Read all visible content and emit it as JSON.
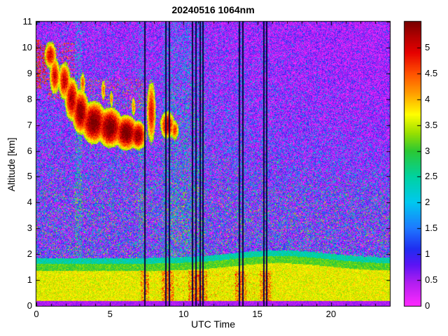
{
  "chart_data": {
    "type": "heatmap",
    "title": "20240516 1064nm",
    "xlabel": "UTC Time",
    "ylabel": "Altitude [km]",
    "x_range": [
      0,
      24
    ],
    "y_range": [
      0,
      11
    ],
    "x_ticks": [
      0,
      5,
      10,
      15,
      20
    ],
    "x_minor_tick_step": 1,
    "y_ticks": [
      0,
      1,
      2,
      3,
      4,
      5,
      6,
      7,
      8,
      9,
      10,
      11
    ],
    "grid": false,
    "legend": "colorbar-right",
    "colorbar": {
      "range": [
        0,
        5.5
      ],
      "ticks": [
        0,
        0.5,
        1,
        1.5,
        2,
        2.5,
        3,
        3.5,
        4,
        4.5,
        5
      ],
      "stops": [
        [
          0.0,
          "#ff2aff"
        ],
        [
          0.45,
          "#b01ef0"
        ],
        [
          0.8,
          "#5a14f5"
        ],
        [
          1.1,
          "#1f2df0"
        ],
        [
          1.5,
          "#1e78ff"
        ],
        [
          2.0,
          "#00c8f0"
        ],
        [
          2.5,
          "#00d2a0"
        ],
        [
          3.0,
          "#2cc832"
        ],
        [
          3.35,
          "#9be000"
        ],
        [
          3.7,
          "#ffff00"
        ],
        [
          4.1,
          "#ffa000"
        ],
        [
          4.5,
          "#ff5000"
        ],
        [
          4.9,
          "#e60000"
        ],
        [
          5.2,
          "#b40000"
        ],
        [
          5.5,
          "#780000"
        ]
      ]
    },
    "features": {
      "dropout_line_color": "#0a0040",
      "dropout_lines": [
        7.35,
        8.8,
        9.05,
        10.6,
        10.85,
        11.1,
        11.3,
        13.8,
        14.0,
        15.45,
        15.65
      ],
      "boundary_layer": {
        "base": 1.85,
        "bump": 0.3,
        "bump_t": 16.5,
        "bump_w": 4.5,
        "body_value": 3.3,
        "body_jitter": 0.7,
        "green_value": 2.8,
        "fringe_value": 2.1,
        "bottom_strip_h": 0.2,
        "bottom_strip_value": 0.2,
        "streak_t0": 8.0,
        "streak_t1": 16.0
      },
      "clouds": [
        {
          "t": 0.95,
          "h": 9.7,
          "rt": 0.45,
          "rh": 0.6,
          "v": 5.0
        },
        {
          "t": 1.25,
          "h": 8.9,
          "rt": 0.4,
          "rh": 0.8,
          "v": 5.0
        },
        {
          "t": 1.9,
          "h": 8.7,
          "rt": 0.45,
          "rh": 0.8,
          "v": 5.1
        },
        {
          "t": 2.4,
          "h": 8.0,
          "rt": 0.5,
          "rh": 0.9,
          "v": 5.3
        },
        {
          "t": 3.0,
          "h": 7.5,
          "rt": 0.6,
          "rh": 0.9,
          "v": 5.5
        },
        {
          "t": 3.9,
          "h": 7.1,
          "rt": 0.9,
          "rh": 0.85,
          "v": 5.6
        },
        {
          "t": 5.0,
          "h": 6.9,
          "rt": 0.9,
          "rh": 0.8,
          "v": 5.6
        },
        {
          "t": 6.1,
          "h": 6.7,
          "rt": 0.85,
          "rh": 0.7,
          "v": 5.6
        },
        {
          "t": 6.9,
          "h": 6.6,
          "rt": 0.6,
          "rh": 0.6,
          "v": 5.4
        },
        {
          "t": 7.8,
          "h": 7.5,
          "rt": 0.35,
          "rh": 1.4,
          "v": 4.9
        },
        {
          "t": 8.9,
          "h": 7.0,
          "rt": 0.55,
          "rh": 0.6,
          "v": 5.1
        },
        {
          "t": 9.4,
          "h": 6.8,
          "rt": 0.3,
          "rh": 0.45,
          "v": 4.7
        },
        {
          "t": 3.15,
          "h": 8.6,
          "rt": 0.22,
          "rh": 0.55,
          "v": 4.5
        },
        {
          "t": 4.55,
          "h": 8.35,
          "rt": 0.18,
          "rh": 0.5,
          "v": 4.4
        },
        {
          "t": 5.1,
          "h": 8.0,
          "rt": 0.15,
          "rh": 0.45,
          "v": 4.3
        },
        {
          "t": 6.6,
          "h": 7.7,
          "rt": 0.18,
          "rh": 0.5,
          "v": 4.3
        }
      ],
      "cloud_speckle_columns": [
        {
          "t0": 0.0,
          "t1": 0.35,
          "h0": 8.4,
          "h1": 10.3,
          "p": 0.5,
          "v0": 4.2,
          "v1": 5.2
        },
        {
          "t0": 0.4,
          "t1": 0.7,
          "h0": 8.6,
          "h1": 10.1,
          "p": 0.4,
          "v0": 4.2,
          "v1": 5.2
        },
        {
          "t0": 0.7,
          "t1": 2.6,
          "h0": 8.0,
          "h1": 10.2,
          "p": 0.18,
          "v0": 4.0,
          "v1": 5.0
        },
        {
          "t0": 2.6,
          "t1": 7.5,
          "h0": 7.6,
          "h1": 8.8,
          "p": 0.1,
          "v0": 3.8,
          "v1": 4.8
        }
      ],
      "noisy_columns": [
        {
          "t0": 2.6,
          "t1": 3.1,
          "boost": 0.25
        },
        {
          "t0": 6.95,
          "t1": 7.4,
          "boost": 0.18
        },
        {
          "t0": 8.55,
          "t1": 11.45,
          "boost": 0.22
        },
        {
          "t0": 13.6,
          "t1": 14.15,
          "boost": 0.12
        },
        {
          "t0": 15.3,
          "t1": 15.8,
          "boost": 0.12
        }
      ],
      "noise": {
        "weights": {
          "magenta": 0.4,
          "blue": 0.34,
          "cyan": 0.16,
          "green": 0.07,
          "yellow": 0.03
        },
        "magenta_alt_bias": 0.22,
        "magenta_time_bias": 0.12
      }
    }
  }
}
